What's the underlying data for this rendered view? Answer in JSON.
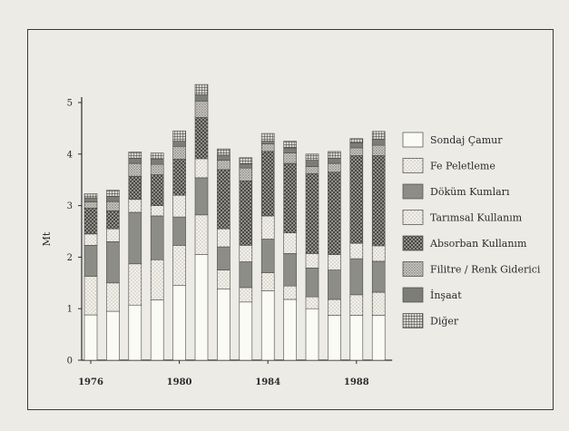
{
  "chart_data": {
    "type": "bar",
    "stacked": true,
    "title": "",
    "xlabel": "",
    "ylabel": "Mt",
    "ylim": [
      0,
      5
    ],
    "yticks": [
      0,
      1,
      2,
      3,
      4,
      5
    ],
    "categories": [
      "1976",
      "1977",
      "1978",
      "1979",
      "1980",
      "1981",
      "1982",
      "1983",
      "1984",
      "1985",
      "1986",
      "1987",
      "1988",
      "1989"
    ],
    "xtick_labels": [
      {
        "category": "1976",
        "label": "1976"
      },
      {
        "category": "1980",
        "label": "1980"
      },
      {
        "category": "1984",
        "label": "1984"
      },
      {
        "category": "1988",
        "label": "1988"
      }
    ],
    "grid": false,
    "legend_position": "right",
    "series": [
      {
        "name": "Sondaj Çamur",
        "color": "#fbfbf6",
        "pattern": "plain",
        "values": [
          0.88,
          0.95,
          1.07,
          1.17,
          1.45,
          2.05,
          1.38,
          1.13,
          1.35,
          1.18,
          1.0,
          0.87,
          0.87,
          0.87
        ]
      },
      {
        "name": "Fe Peletleme",
        "color": "#efece4",
        "pattern": "dots",
        "values": [
          0.75,
          0.55,
          0.8,
          0.78,
          0.78,
          0.77,
          0.37,
          0.28,
          0.35,
          0.26,
          0.23,
          0.31,
          0.4,
          0.45
        ]
      },
      {
        "name": "Döküm Kumları",
        "color": "#8d8d87",
        "pattern": "solid",
        "values": [
          0.6,
          0.8,
          1.0,
          0.85,
          0.55,
          0.72,
          0.45,
          0.5,
          0.65,
          0.63,
          0.56,
          0.57,
          0.7,
          0.6
        ]
      },
      {
        "name": "Tarımsal Kullanım",
        "color": "#c9c7bf",
        "pattern": "dots",
        "values": [
          0.22,
          0.25,
          0.25,
          0.2,
          0.42,
          0.37,
          0.35,
          0.32,
          0.45,
          0.4,
          0.28,
          0.3,
          0.3,
          0.3
        ]
      },
      {
        "name": "Absorban Kullanım",
        "color": "#878782",
        "pattern": "crosshatch",
        "values": [
          0.5,
          0.35,
          0.45,
          0.6,
          0.7,
          0.8,
          1.15,
          1.25,
          1.25,
          1.35,
          1.55,
          1.6,
          1.7,
          1.75
        ]
      },
      {
        "name": "Filitre / Renk Giderici",
        "color": "#b5b3ac",
        "pattern": "stipple",
        "values": [
          0.12,
          0.18,
          0.25,
          0.2,
          0.25,
          0.32,
          0.18,
          0.25,
          0.15,
          0.2,
          0.14,
          0.17,
          0.15,
          0.2
        ]
      },
      {
        "name": "İnşaat",
        "color": "#7d7d78",
        "pattern": "solid",
        "values": [
          0.08,
          0.1,
          0.1,
          0.1,
          0.1,
          0.12,
          0.1,
          0.08,
          0.05,
          0.1,
          0.12,
          0.1,
          0.1,
          0.12
        ]
      },
      {
        "name": "Diğer",
        "color": "#b0aea8",
        "pattern": "grid",
        "values": [
          0.08,
          0.12,
          0.12,
          0.12,
          0.2,
          0.2,
          0.12,
          0.12,
          0.15,
          0.13,
          0.12,
          0.13,
          0.08,
          0.15
        ]
      }
    ]
  }
}
